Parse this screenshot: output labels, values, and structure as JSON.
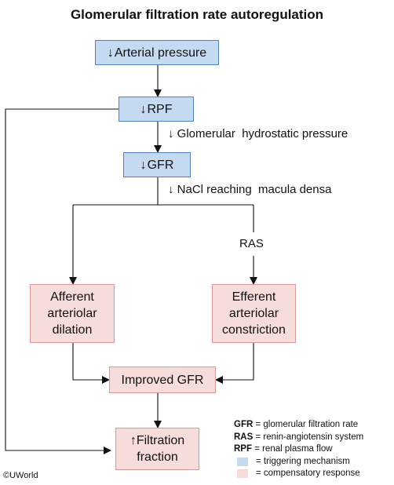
{
  "title": "Glomerular filtration rate autoregulation",
  "colors": {
    "triggering": "#c5d9f1",
    "compensatory": "#f6dcdb",
    "line": "#111111"
  },
  "nodes": {
    "arterial_pressure": {
      "arrow": "↓",
      "label": "Arterial pressure"
    },
    "rpf": {
      "arrow": "↓",
      "label": "RPF"
    },
    "gfr": {
      "arrow": "↓",
      "label": "GFR"
    },
    "afferent": {
      "line1": "Afferent",
      "line2": "arteriolar",
      "line3": "dilation"
    },
    "efferent": {
      "line1": "Efferent",
      "line2": "arteriolar",
      "line3": "constriction"
    },
    "improved_gfr": {
      "label": "Improved GFR"
    },
    "filtration_fraction": {
      "arrow": "↑",
      "line1": "Filtration",
      "line2": "fraction"
    }
  },
  "annotations": {
    "hydrostatic": {
      "arrow": "↓",
      "text": "Glomerular  hydrostatic pressure"
    },
    "nacl": {
      "arrow": "↓",
      "text": "NaCl reaching  macula densa"
    },
    "ras": "RAS"
  },
  "legend": {
    "items": [
      {
        "term": "GFR",
        "definition": " = glomerular filtration rate"
      },
      {
        "term": "RAS",
        "definition": " = renin-angiotensin system"
      },
      {
        "term": "RPF",
        "definition": " = renal plasma flow"
      }
    ],
    "swatches": [
      {
        "label": "= triggering mechanism"
      },
      {
        "label": "= compensatory response"
      }
    ]
  },
  "copyright": "©UWorld"
}
